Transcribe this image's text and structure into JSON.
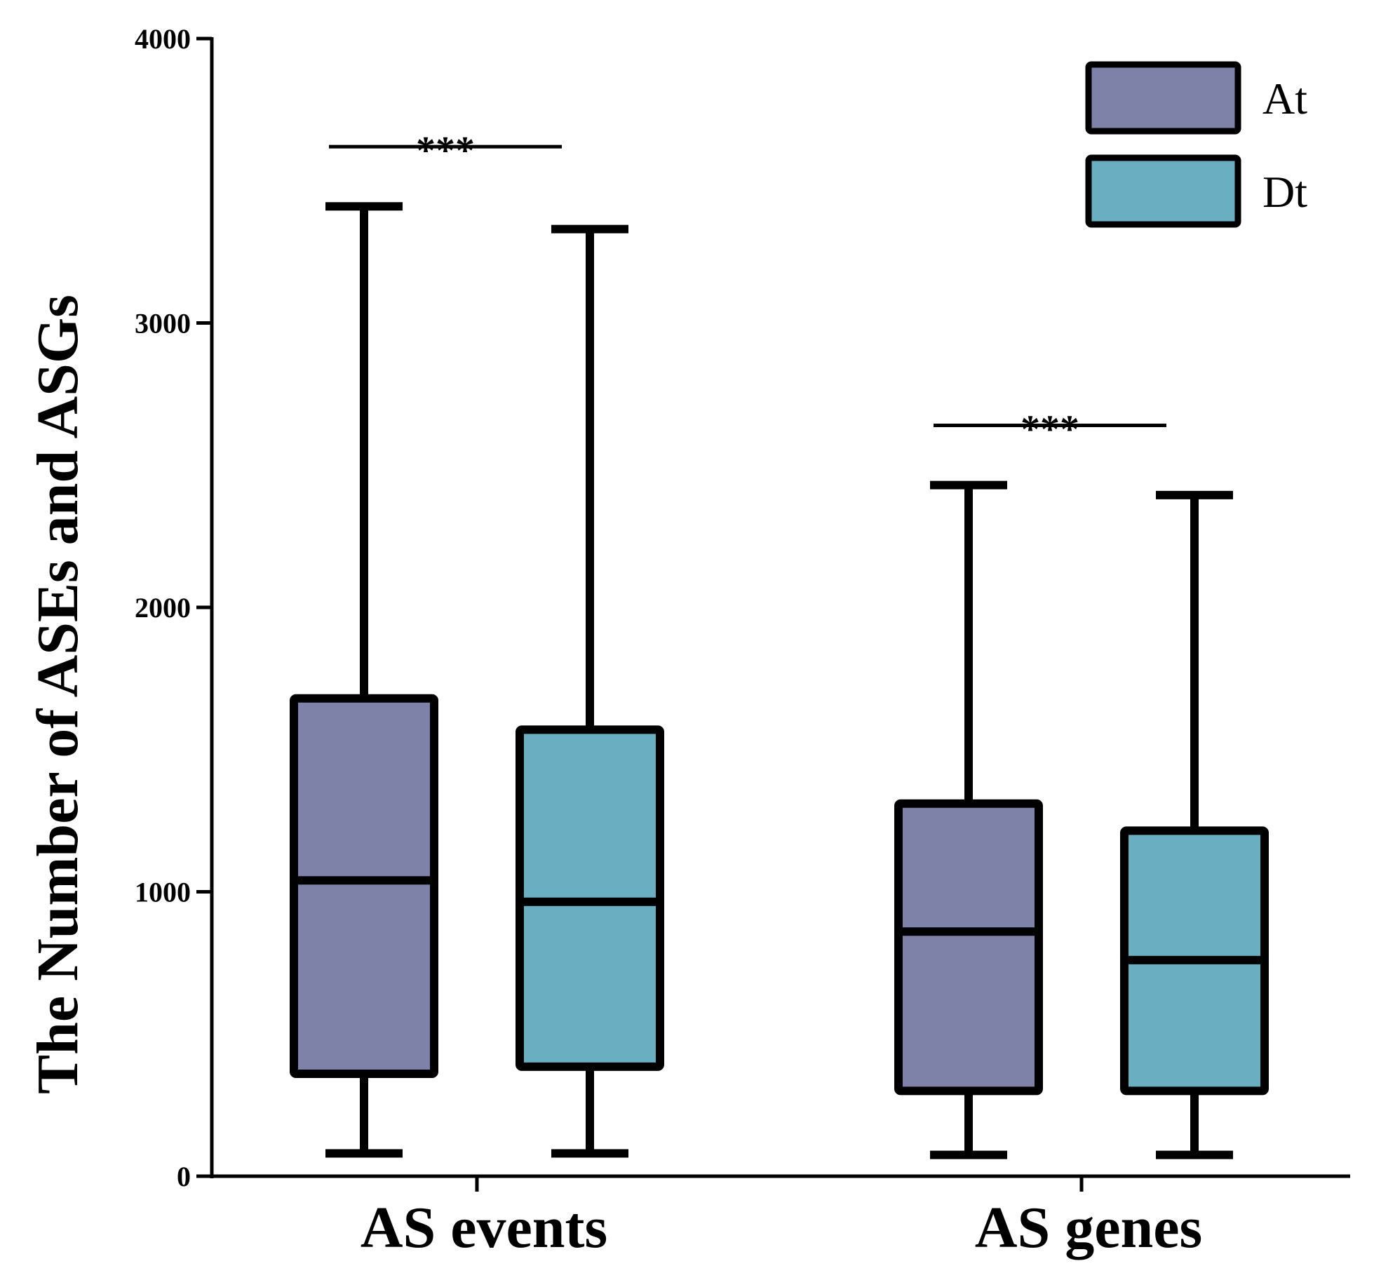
{
  "chart_data": {
    "type": "box",
    "title": "",
    "xlabel": "",
    "ylabel": "The Number of ASEs and ASGs",
    "ylim": [
      0,
      4000
    ],
    "yticks": [
      0,
      1000,
      2000,
      3000,
      4000
    ],
    "categories": [
      "AS events",
      "AS genes"
    ],
    "series": [
      {
        "name": "At",
        "color": "#7e82a8",
        "boxes": [
          {
            "min": 80,
            "q1": 360,
            "median": 1040,
            "q3": 1680,
            "max": 3410
          },
          {
            "min": 75,
            "q1": 300,
            "median": 860,
            "q3": 1310,
            "max": 2430
          }
        ]
      },
      {
        "name": "Dt",
        "color": "#6aaec2",
        "boxes": [
          {
            "min": 80,
            "q1": 385,
            "median": 965,
            "q3": 1570,
            "max": 3330
          },
          {
            "min": 75,
            "q1": 300,
            "median": 760,
            "q3": 1215,
            "max": 2395
          }
        ]
      }
    ],
    "significance": [
      {
        "category": "AS events",
        "label": "***",
        "y": 3620
      },
      {
        "category": "AS genes",
        "label": "***",
        "y": 2640
      }
    ],
    "legend_position": "top-right"
  }
}
